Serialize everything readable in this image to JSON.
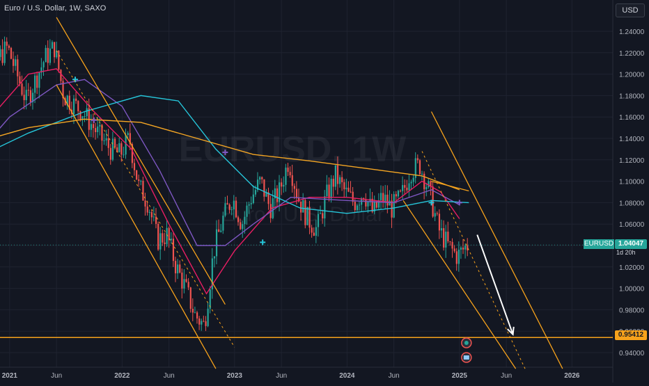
{
  "header": {
    "title": "Euro / U.S. Dollar, 1W, SAXO",
    "currency": "USD"
  },
  "watermark": {
    "symbol": "EURUSD, 1W",
    "name": "Euro / U.S. Dollar"
  },
  "colors": {
    "background": "#131722",
    "up": "#26a69a",
    "down": "#ef5350",
    "channel": "#f7a21b",
    "ma_orange": "#f5a623",
    "ma_teal": "#26c6da",
    "ma_purple": "#7e57c2",
    "ma_red": "#e91e63",
    "grid": "#1f2330"
  },
  "markers": {
    "last_price_symbol": "EURUSD",
    "last_price": "1.04047",
    "countdown": "1d 20h",
    "support_level": "0.95412"
  },
  "chart_data": {
    "type": "candlestick",
    "title": "Euro / U.S. Dollar, 1W, SAXO",
    "ylim": [
      0.925,
      1.255
    ],
    "yticks": [
      "1.24000",
      "1.22000",
      "1.20000",
      "1.18000",
      "1.16000",
      "1.14000",
      "1.12000",
      "1.10000",
      "1.08000",
      "1.06000",
      "1.04000",
      "1.02000",
      "1.00000",
      "0.98000",
      "0.96000",
      "0.94000"
    ],
    "xticks": [
      {
        "label": "2021",
        "x": "2021-01"
      },
      {
        "label": "Jun",
        "x": "2021-06"
      },
      {
        "label": "2022",
        "x": "2022-01"
      },
      {
        "label": "Jun",
        "x": "2022-06"
      },
      {
        "label": "2023",
        "x": "2023-01"
      },
      {
        "label": "Jun",
        "x": "2023-06"
      },
      {
        "label": "2024",
        "x": "2024-01"
      },
      {
        "label": "Jun",
        "x": "2024-06"
      },
      {
        "label": "2025",
        "x": "2025-01"
      },
      {
        "label": "Jun",
        "x": "2025-06"
      },
      {
        "label": "2026",
        "x": "2026-01"
      }
    ],
    "grid": true,
    "path": [
      [
        "2020-09",
        1.183
      ],
      [
        "2020-11",
        1.17
      ],
      [
        "2020-12",
        1.215
      ],
      [
        "2021-01",
        1.225
      ],
      [
        "2021-03",
        1.175
      ],
      [
        "2021-05",
        1.215
      ],
      [
        "2021-06",
        1.225
      ],
      [
        "2021-07",
        1.18
      ],
      [
        "2021-09",
        1.165
      ],
      [
        "2021-11",
        1.14
      ],
      [
        "2021-12",
        1.13
      ],
      [
        "2022-01",
        1.125
      ],
      [
        "2022-02",
        1.14
      ],
      [
        "2022-03",
        1.095
      ],
      [
        "2022-04",
        1.08
      ],
      [
        "2022-05",
        1.045
      ],
      [
        "2022-06",
        1.05
      ],
      [
        "2022-07",
        1.02
      ],
      [
        "2022-08",
        1.0
      ],
      [
        "2022-09",
        0.975
      ],
      [
        "2022-10",
        0.965
      ],
      [
        "2022-11",
        1.035
      ],
      [
        "2022-12",
        1.065
      ],
      [
        "2023-01",
        1.085
      ],
      [
        "2023-02",
        1.06
      ],
      [
        "2023-03",
        1.085
      ],
      [
        "2023-04",
        1.1
      ],
      [
        "2023-05",
        1.075
      ],
      [
        "2023-06",
        1.09
      ],
      [
        "2023-07",
        1.12
      ],
      [
        "2023-08",
        1.085
      ],
      [
        "2023-09",
        1.065
      ],
      [
        "2023-10",
        1.055
      ],
      [
        "2023-11",
        1.085
      ],
      [
        "2023-12",
        1.105
      ],
      [
        "2024-01",
        1.09
      ],
      [
        "2024-02",
        1.08
      ],
      [
        "2024-03",
        1.09
      ],
      [
        "2024-04",
        1.07
      ],
      [
        "2024-05",
        1.085
      ],
      [
        "2024-06",
        1.075
      ],
      [
        "2024-07",
        1.085
      ],
      [
        "2024-08",
        1.11
      ],
      [
        "2024-09",
        1.115
      ],
      [
        "2024-10",
        1.09
      ],
      [
        "2024-11",
        1.055
      ],
      [
        "2024-12",
        1.04
      ],
      [
        "2025-01",
        1.03
      ],
      [
        "2025-02",
        1.04
      ]
    ],
    "moving_averages": [
      {
        "color": "#e91e63",
        "points": [
          [
            "2020-09",
            1.14
          ],
          [
            "2021-03",
            1.2
          ],
          [
            "2021-06",
            1.205
          ],
          [
            "2021-10",
            1.165
          ],
          [
            "2022-02",
            1.13
          ],
          [
            "2022-06",
            1.06
          ],
          [
            "2022-10",
            0.995
          ],
          [
            "2023-01",
            1.035
          ],
          [
            "2023-05",
            1.075
          ],
          [
            "2023-09",
            1.085
          ],
          [
            "2024-01",
            1.085
          ],
          [
            "2024-06",
            1.08
          ],
          [
            "2024-09",
            1.1
          ],
          [
            "2024-11",
            1.09
          ],
          [
            "2025-01",
            1.065
          ]
        ]
      },
      {
        "color": "#7e57c2",
        "points": [
          [
            "2020-09",
            1.12
          ],
          [
            "2021-01",
            1.16
          ],
          [
            "2021-06",
            1.19
          ],
          [
            "2021-09",
            1.195
          ],
          [
            "2022-01",
            1.17
          ],
          [
            "2022-05",
            1.11
          ],
          [
            "2022-09",
            1.04
          ],
          [
            "2022-12",
            1.04
          ],
          [
            "2023-03",
            1.06
          ],
          [
            "2023-07",
            1.085
          ],
          [
            "2024-01",
            1.082
          ],
          [
            "2024-06",
            1.08
          ],
          [
            "2024-10",
            1.092
          ],
          [
            "2025-01",
            1.078
          ]
        ]
      },
      {
        "color": "#26c6da",
        "points": [
          [
            "2020-09",
            1.12
          ],
          [
            "2021-03",
            1.145
          ],
          [
            "2021-09",
            1.165
          ],
          [
            "2022-03",
            1.18
          ],
          [
            "2022-07",
            1.175
          ],
          [
            "2022-11",
            1.13
          ],
          [
            "2023-03",
            1.095
          ],
          [
            "2023-08",
            1.075
          ],
          [
            "2024-01",
            1.07
          ],
          [
            "2024-06",
            1.075
          ],
          [
            "2024-10",
            1.082
          ],
          [
            "2025-02",
            1.08
          ]
        ]
      },
      {
        "color": "#f5a623",
        "points": [
          [
            "2020-09",
            1.135
          ],
          [
            "2021-03",
            1.15
          ],
          [
            "2021-09",
            1.158
          ],
          [
            "2022-03",
            1.155
          ],
          [
            "2022-09",
            1.14
          ],
          [
            "2023-03",
            1.125
          ],
          [
            "2023-09",
            1.119
          ],
          [
            "2024-03",
            1.112
          ],
          [
            "2024-09",
            1.105
          ],
          [
            "2025-01",
            1.092
          ]
        ]
      }
    ],
    "ma_markers": [
      {
        "x": "2021-08",
        "y": 1.195,
        "color": "#26c6da"
      },
      {
        "x": "2021-10",
        "y": 1.157,
        "color": "#7e57c2"
      },
      {
        "x": "2022-12",
        "y": 1.127,
        "color": "#7e57c2"
      },
      {
        "x": "2023-04",
        "y": 1.043,
        "color": "#26c6da"
      },
      {
        "x": "2024-10",
        "y": 1.08,
        "color": "#26c6da"
      },
      {
        "x": "2025-01",
        "y": 1.08,
        "color": "#7e57c2"
      }
    ],
    "channels": [
      {
        "color": "#f7a21b",
        "lines": [
          [
            [
              "2021-06",
              1.253
            ],
            [
              "2022-12",
              0.985
            ]
          ],
          [
            [
              "2021-06",
              1.19
            ],
            [
              "2022-11",
              0.925
            ]
          ]
        ],
        "mid": [
          [
            "2021-06",
            1.222
          ],
          [
            "2023-01",
            0.945
          ]
        ]
      },
      {
        "color": "#f7a21b",
        "lines": [
          [
            [
              "2024-10",
              1.165
            ],
            [
              "2025-12",
              0.925
            ]
          ],
          [
            [
              "2024-07",
              1.082
            ],
            [
              "2025-07",
              0.925
            ]
          ]
        ],
        "mid": [
          [
            "2024-09",
            1.128
          ],
          [
            "2025-08",
            0.925
          ]
        ]
      }
    ],
    "resistance_line": [
      [
        "2024-10",
        1.1
      ],
      [
        "2025-02",
        1.091
      ]
    ],
    "support_level": 0.95412,
    "last_price": 1.04047,
    "projection_arrow": [
      [
        "2025-02",
        1.05
      ],
      [
        "2025-07",
        0.957
      ]
    ]
  }
}
